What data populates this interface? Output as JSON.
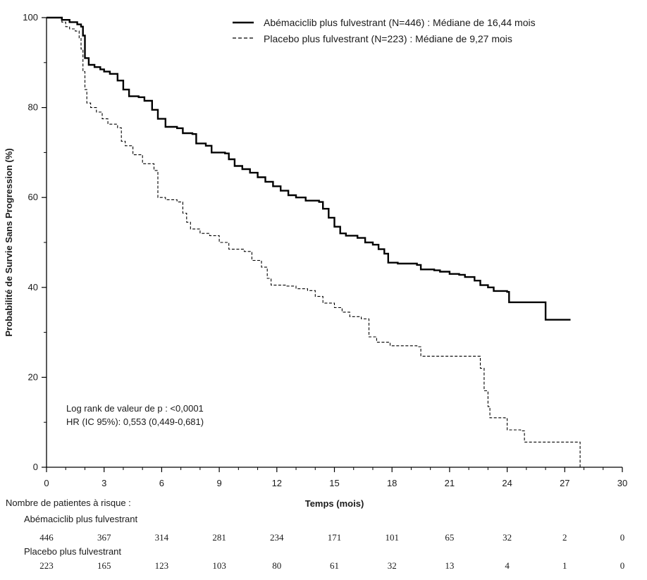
{
  "chart_data": {
    "type": "line",
    "subtype": "kaplan-meier step",
    "xlabel": "Temps (mois)",
    "ylabel": "Probabilité de Survie Sans Progression (%)",
    "xlim": [
      0,
      30
    ],
    "ylim": [
      0,
      100
    ],
    "x_ticks": [
      0,
      3,
      6,
      9,
      12,
      15,
      18,
      21,
      24,
      27,
      30
    ],
    "y_ticks": [
      0,
      20,
      40,
      60,
      80,
      100
    ],
    "grid": false,
    "legend_position": "top-right",
    "series": [
      {
        "name": "Abémaciclib plus fulvestrant",
        "legend_label": "Abémaciclib plus fulvestrant  (N=446) :  Médiane de 16,44 mois",
        "style": "solid",
        "color": "#000000",
        "points": [
          [
            0,
            100
          ],
          [
            0.5,
            100
          ],
          [
            0.8,
            99.5
          ],
          [
            1.2,
            99
          ],
          [
            1.6,
            98.5
          ],
          [
            1.8,
            98
          ],
          [
            1.9,
            96
          ],
          [
            2.0,
            91
          ],
          [
            2.2,
            89.5
          ],
          [
            2.5,
            89
          ],
          [
            2.8,
            88.5
          ],
          [
            3.0,
            88
          ],
          [
            3.3,
            87.5
          ],
          [
            3.7,
            86
          ],
          [
            4.0,
            84
          ],
          [
            4.3,
            82.5
          ],
          [
            4.8,
            82.3
          ],
          [
            5.1,
            81.5
          ],
          [
            5.5,
            79.5
          ],
          [
            5.8,
            77.5
          ],
          [
            6.2,
            75.7
          ],
          [
            6.8,
            75.4
          ],
          [
            7.1,
            74.3
          ],
          [
            7.6,
            74.1
          ],
          [
            7.8,
            72
          ],
          [
            8.3,
            71.5
          ],
          [
            8.6,
            70
          ],
          [
            9.3,
            69.8
          ],
          [
            9.5,
            68.5
          ],
          [
            9.8,
            67
          ],
          [
            10.2,
            66.3
          ],
          [
            10.6,
            65.5
          ],
          [
            11.0,
            64.5
          ],
          [
            11.4,
            63.5
          ],
          [
            11.8,
            62.5
          ],
          [
            12.2,
            61.5
          ],
          [
            12.6,
            60.5
          ],
          [
            13.0,
            60
          ],
          [
            13.5,
            59.3
          ],
          [
            14.2,
            59
          ],
          [
            14.4,
            57.5
          ],
          [
            14.7,
            55.5
          ],
          [
            15.0,
            53.5
          ],
          [
            15.3,
            52
          ],
          [
            15.6,
            51.5
          ],
          [
            16.2,
            51
          ],
          [
            16.6,
            50
          ],
          [
            17.0,
            49.5
          ],
          [
            17.3,
            48.5
          ],
          [
            17.6,
            47.5
          ],
          [
            17.8,
            45.5
          ],
          [
            18.3,
            45.3
          ],
          [
            19.3,
            45
          ],
          [
            19.5,
            44
          ],
          [
            20.2,
            43.8
          ],
          [
            20.5,
            43.5
          ],
          [
            21.0,
            43
          ],
          [
            21.5,
            42.8
          ],
          [
            21.8,
            42.3
          ],
          [
            22.3,
            41.5
          ],
          [
            22.6,
            40.5
          ],
          [
            23.0,
            40
          ],
          [
            23.3,
            39.2
          ],
          [
            24.0,
            39
          ],
          [
            24.1,
            36.7
          ],
          [
            25.8,
            36.7
          ],
          [
            26.0,
            32.8
          ],
          [
            27.3,
            32.8
          ]
        ]
      },
      {
        "name": "Placebo plus fulvestrant",
        "legend_label": "Placebo plus fulvestrant (N=223) :  Médiane de 9,27 mois",
        "style": "dashed",
        "color": "#000000",
        "points": [
          [
            0,
            100
          ],
          [
            0.5,
            100
          ],
          [
            0.8,
            99
          ],
          [
            1.0,
            98
          ],
          [
            1.2,
            97.5
          ],
          [
            1.5,
            97
          ],
          [
            1.7,
            95.5
          ],
          [
            1.8,
            93
          ],
          [
            1.9,
            88
          ],
          [
            2.0,
            84
          ],
          [
            2.1,
            81
          ],
          [
            2.3,
            80
          ],
          [
            2.6,
            79
          ],
          [
            2.9,
            77.5
          ],
          [
            3.2,
            76.3
          ],
          [
            3.7,
            75.5
          ],
          [
            3.9,
            72.5
          ],
          [
            4.1,
            71.5
          ],
          [
            4.5,
            69.5
          ],
          [
            5.0,
            67.5
          ],
          [
            5.6,
            66
          ],
          [
            5.8,
            60
          ],
          [
            6.2,
            59.5
          ],
          [
            6.8,
            59
          ],
          [
            7.1,
            56.5
          ],
          [
            7.3,
            54.5
          ],
          [
            7.5,
            53
          ],
          [
            8.0,
            52
          ],
          [
            8.5,
            51.5
          ],
          [
            9.0,
            50
          ],
          [
            9.5,
            48.5
          ],
          [
            10.3,
            48
          ],
          [
            10.7,
            46
          ],
          [
            11.2,
            44.5
          ],
          [
            11.5,
            42
          ],
          [
            11.7,
            40.5
          ],
          [
            12.5,
            40.3
          ],
          [
            13.0,
            39.7
          ],
          [
            13.6,
            39.3
          ],
          [
            14.0,
            38
          ],
          [
            14.4,
            36.5
          ],
          [
            15.0,
            35.5
          ],
          [
            15.4,
            34.5
          ],
          [
            15.8,
            33.5
          ],
          [
            16.4,
            33
          ],
          [
            16.8,
            29
          ],
          [
            17.2,
            27.8
          ],
          [
            17.9,
            27
          ],
          [
            19.3,
            26.8
          ],
          [
            19.5,
            24.7
          ],
          [
            22.4,
            24.7
          ],
          [
            22.6,
            22
          ],
          [
            22.8,
            17
          ],
          [
            23.0,
            13.5
          ],
          [
            23.1,
            11
          ],
          [
            23.9,
            10.8
          ],
          [
            24.0,
            8.3
          ],
          [
            24.7,
            8.1
          ],
          [
            24.9,
            5.6
          ],
          [
            27.8,
            5.6
          ],
          [
            27.8,
            0
          ]
        ]
      }
    ],
    "annotations": [
      "Log rank de valeur de p : <0,0001",
      "HR (IC 95%): 0,553 (0,449-0,681)"
    ],
    "risk_table": {
      "title": "Nombre de patientes à risque :",
      "times": [
        0,
        3,
        6,
        9,
        12,
        15,
        18,
        21,
        24,
        27,
        30
      ],
      "rows": [
        {
          "label": "Abémaciclib plus fulvestrant",
          "counts": [
            446,
            367,
            314,
            281,
            234,
            171,
            101,
            65,
            32,
            2,
            0
          ]
        },
        {
          "label": "Placebo plus fulvestrant",
          "counts": [
            223,
            165,
            123,
            103,
            80,
            61,
            32,
            13,
            4,
            1,
            0
          ]
        }
      ]
    }
  }
}
